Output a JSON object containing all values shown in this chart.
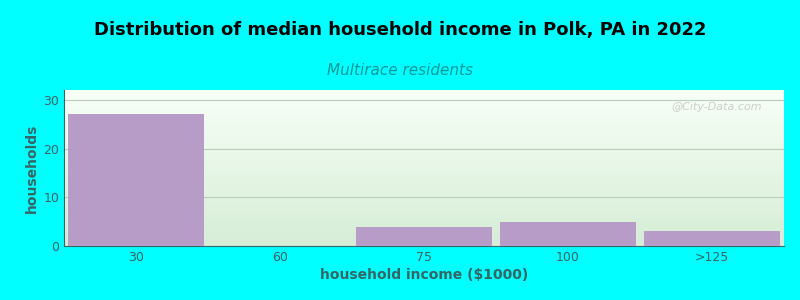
{
  "title": "Distribution of median household income in Polk, PA in 2022",
  "subtitle": "Multirace residents",
  "subtitle_color": "#009999",
  "xlabel": "household income ($1000)",
  "ylabel": "households",
  "categories": [
    "30",
    "60",
    "75",
    "100",
    ">125"
  ],
  "values": [
    27,
    0,
    4,
    5,
    3
  ],
  "bar_color": "#B89CC8",
  "bar_width": 0.95,
  "ylim": [
    0,
    32
  ],
  "yticks": [
    0,
    10,
    20,
    30
  ],
  "background_color": "#00FFFF",
  "plot_bg_top": "#F0F8F0",
  "plot_bg_bottom": "#D4ECD4",
  "grid_color": "#BBCCBB",
  "title_fontsize": 13,
  "subtitle_fontsize": 11,
  "axis_label_fontsize": 10,
  "tick_fontsize": 9,
  "watermark": "@City-Data.com"
}
